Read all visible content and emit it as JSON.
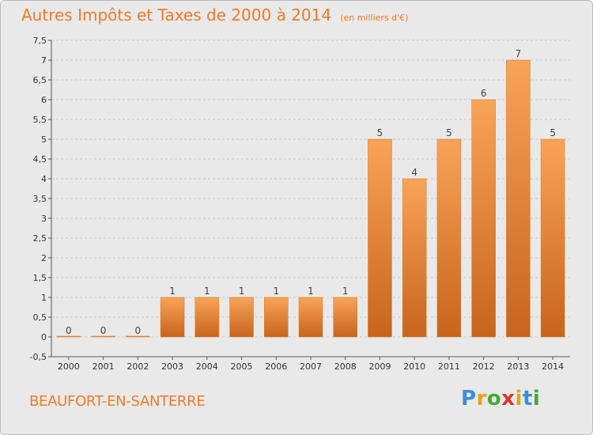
{
  "title": "Autres Impôts et Taxes de 2000 à 2014",
  "subtitle": "(en milliers d'€)",
  "commune": "BEAUFORT-EN-SANTERRE",
  "logo": {
    "letters": [
      "P",
      "r",
      "o",
      "x",
      "i",
      "t",
      "i"
    ],
    "colors": [
      "#3a8fd6",
      "#e8a21a",
      "#4aa63c",
      "#d9352a",
      "#e8a21a",
      "#3a8fd6",
      "#4aa63c"
    ]
  },
  "colors": {
    "bar_light": "#f8a458",
    "bar_dark": "#c8641c",
    "title": "#f07a2a",
    "background": "#e9e9e9",
    "grid": "#c8c8c8"
  },
  "chart_data": {
    "type": "bar",
    "categories": [
      "2000",
      "2001",
      "2002",
      "2003",
      "2004",
      "2005",
      "2006",
      "2007",
      "2008",
      "2009",
      "2010",
      "2011",
      "2012",
      "2013",
      "2014"
    ],
    "values": [
      0,
      0,
      0,
      1,
      1,
      1,
      1,
      1,
      1,
      5,
      4,
      5,
      6,
      7,
      5
    ],
    "value_labels": [
      "0",
      "0",
      "0",
      "1",
      "1",
      "1",
      "1",
      "1",
      "1",
      "5",
      "4",
      "5",
      "6",
      "7",
      "5"
    ],
    "ylim": [
      -0.5,
      7.5
    ],
    "yticks": [
      -0.5,
      0,
      0.5,
      1,
      1.5,
      2,
      2.5,
      3,
      3.5,
      4,
      4.5,
      5,
      5.5,
      6,
      6.5,
      7,
      7.5
    ],
    "ytick_labels": [
      "-0,5",
      "0",
      "0,5",
      "1",
      "1,5",
      "2",
      "2,5",
      "3",
      "3,5",
      "4",
      "4,5",
      "5",
      "5,5",
      "6",
      "6,5",
      "7",
      "7,5"
    ],
    "grid": "horizontal dashed",
    "title": "Autres Impôts et Taxes de 2000 à 2014",
    "xlabel": "",
    "ylabel": ""
  }
}
